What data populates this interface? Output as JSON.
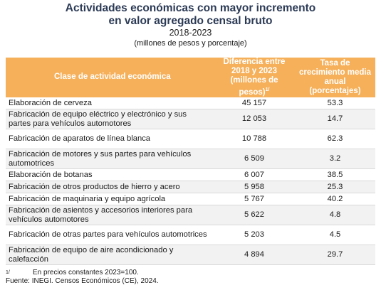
{
  "title": {
    "line1": "Actividades económicas con mayor incremento",
    "line2": "en valor agregado censal bruto",
    "period": "2018-2023",
    "units": "(millones de pesos y porcentaje)"
  },
  "table": {
    "headers": {
      "activity": "Clase de actividad económica",
      "difference": "Diferencia entre 2018 y 2023 (millones de pesos)",
      "difference_mark": "1/",
      "growth": "Tasa de crecimiento media anual (porcentajes)"
    },
    "rows": [
      {
        "activity": "Elaboración de cerveza",
        "difference": "45 157",
        "growth": "53.3"
      },
      {
        "activity": "Fabricación de equipo eléctrico y electrónico y sus partes para vehículos automotores",
        "difference": "12 053",
        "growth": "14.7"
      },
      {
        "activity": "Fabricación de aparatos de línea blanca",
        "difference": "10 788",
        "growth": "62.3"
      },
      {
        "activity": "Fabricación de motores y sus partes para vehículos automotrices",
        "difference": "6 509",
        "growth": "3.2"
      },
      {
        "activity": "Elaboración de botanas",
        "difference": "6 007",
        "growth": "38.5"
      },
      {
        "activity": "Fabricación de otros productos de hierro y acero",
        "difference": "5 958",
        "growth": "25.3"
      },
      {
        "activity": "Fabricación de maquinaria y equipo agrícola",
        "difference": "5 767",
        "growth": "40.2"
      },
      {
        "activity": "Fabricación de asientos y accesorios interiores para vehículos automotores",
        "difference": "5 622",
        "growth": "4.8"
      },
      {
        "activity": "Fabricación de otras partes para vehículos automotrices",
        "difference": "5 203",
        "growth": "4.5"
      },
      {
        "activity": "Fabricación de equipo de aire acondicionado y calefacción",
        "difference": "4 894",
        "growth": "29.7"
      }
    ]
  },
  "footnotes": {
    "note_mark": "1/",
    "note_text": "En precios constantes 2023=100.",
    "source": "Fuente: INEGI. Censos Económicos (CE), 2024."
  },
  "colors": {
    "header_bg": "#f6b05a",
    "title": "#2b3a55"
  }
}
